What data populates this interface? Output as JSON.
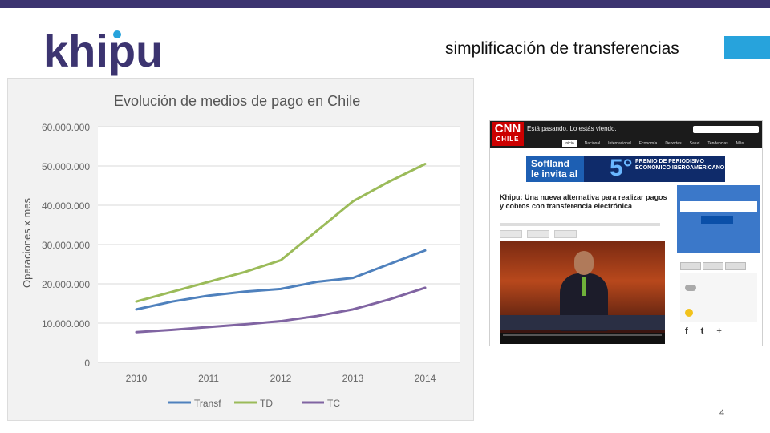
{
  "slide": {
    "logo_text": "khipu",
    "title": "simplificación de transferencias",
    "page_number": "4",
    "colors": {
      "top_bar": "#3c3470",
      "accent_box": "#27a3dc",
      "logo": "#3c3470"
    }
  },
  "chart_data": {
    "type": "line",
    "title": "Evolución de medios de pago en Chile",
    "ylabel": "Operaciones x mes",
    "xlabel": "",
    "categories": [
      "2010",
      "2011",
      "2012",
      "2013",
      "2014"
    ],
    "ylim": [
      0,
      60000000
    ],
    "y_ticks": [
      "0",
      "10.000.000",
      "20.000.000",
      "30.000.000",
      "40.000.000",
      "50.000.000",
      "60.000.000"
    ],
    "y_tick_values": [
      0,
      10000000,
      20000000,
      30000000,
      40000000,
      50000000,
      60000000
    ],
    "grid": true,
    "legend_position": "bottom",
    "series": [
      {
        "name": "Transf",
        "color": "#4f81bd",
        "x": [
          2010.0,
          2010.5,
          2011.0,
          2011.5,
          2012.0,
          2012.5,
          2013.0,
          2013.5,
          2014.0
        ],
        "values": [
          13500000,
          15500000,
          17000000,
          18000000,
          18700000,
          20500000,
          21500000,
          25000000,
          28500000
        ]
      },
      {
        "name": "TD",
        "color": "#9bbb59",
        "x": [
          2010.0,
          2010.5,
          2011.0,
          2011.5,
          2012.0,
          2012.5,
          2013.0,
          2013.5,
          2014.0
        ],
        "values": [
          15500000,
          18000000,
          20500000,
          23000000,
          26000000,
          33500000,
          41000000,
          46000000,
          50500000
        ]
      },
      {
        "name": "TC",
        "color": "#8064a2",
        "x": [
          2010.0,
          2010.5,
          2011.0,
          2011.5,
          2012.0,
          2012.5,
          2013.0,
          2013.5,
          2014.0
        ],
        "values": [
          7700000,
          8300000,
          9000000,
          9700000,
          10500000,
          11800000,
          13500000,
          16000000,
          19000000
        ]
      }
    ]
  },
  "screenshot": {
    "brand": "CNN",
    "brand_sub": "CHILE",
    "tagline": "Está pasando. Lo estás viendo.",
    "nav": [
      "Inicio",
      "Nacional",
      "Internacional",
      "Economía",
      "Deportes",
      "Salud",
      "Tendencias",
      "Más"
    ],
    "banner_left": "Softland le invita al",
    "banner_number": "5°",
    "banner_text": "PREMIO DE PERIODISMO ECONÓMICO IBEROAMERICANO",
    "article_title": "Khipu: Una nueva alternativa para realizar pagos y cobros con transferencia electrónica",
    "social": [
      "f",
      "t",
      "+"
    ]
  }
}
